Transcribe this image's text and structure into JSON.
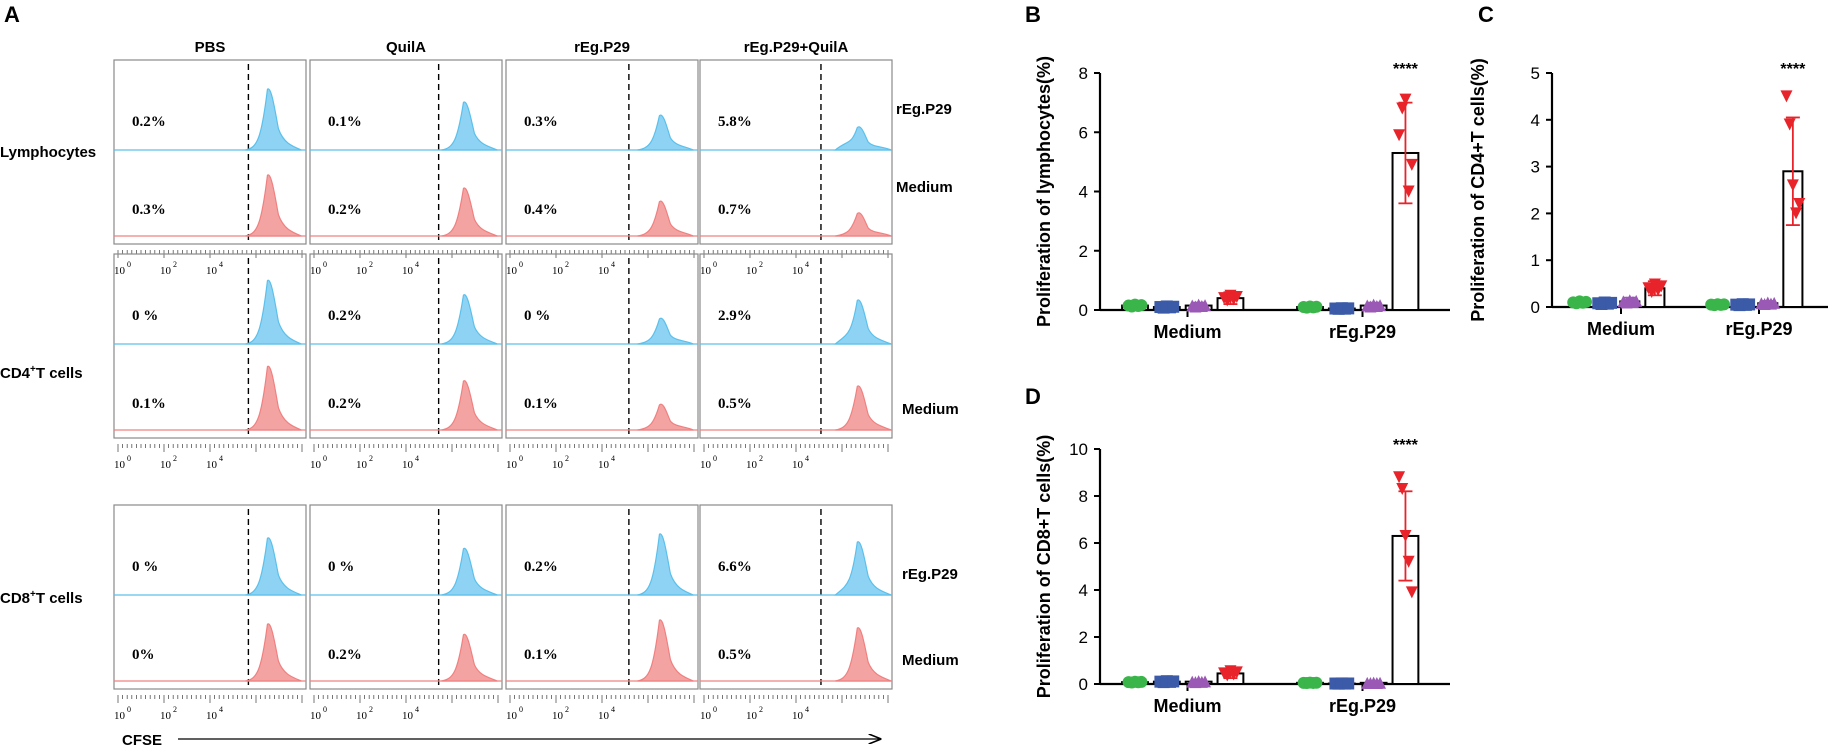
{
  "panel_letters": [
    "A",
    "B",
    "C",
    "D"
  ],
  "flow": {
    "columns": [
      "PBS",
      "QuilA",
      "rEg.P29",
      "rEg.P29+QuilA"
    ],
    "row_groups": [
      {
        "label": "Lymphocytes",
        "label_base": "Lymphocytes",
        "label_sup": "",
        "label_tail": "",
        "rEg": [
          "0.2%",
          "0.1%",
          "0.3%",
          "5.8%"
        ],
        "Medium": [
          "0.3%",
          "0.2%",
          "0.4%",
          "0.7%"
        ]
      },
      {
        "label": "CD4+T cells",
        "label_base": "CD4",
        "label_sup": "+",
        "label_tail": "T cells",
        "rEg": [
          "0 %",
          "0.2%",
          "0 %",
          "2.9%"
        ],
        "Medium": [
          "0.1%",
          "0.2%",
          "0.1%",
          "0.5%"
        ]
      },
      {
        "label": "CD8+T cells",
        "label_base": "CD8",
        "label_sup": "+",
        "label_tail": "T cells",
        "rEg": [
          "0 %",
          "0 %",
          "0.2%",
          "6.6%"
        ],
        "Medium": [
          "0%",
          "0.2%",
          "0.1%",
          "0.5%"
        ]
      }
    ],
    "condition_labels": [
      "rEg.P29",
      "Medium"
    ],
    "axis_ticks": [
      "10",
      "10",
      "10",
      "10"
    ],
    "axis_tick_exponents": [
      "0",
      "2",
      "4"
    ],
    "x_axis_label": "CFSE",
    "colors": {
      "rEg": "#5bc0eb",
      "Medium": "#f08080",
      "rEg_fill": "#8fd3f4",
      "Medium_fill": "#f4a3a3"
    }
  },
  "chart_data": [
    {
      "panel": "B",
      "type": "bar",
      "ylabel": "Proliferation of lymphocytes(%)",
      "categories": [
        "Medium",
        "rEg.P29"
      ],
      "ylim": [
        0,
        8
      ],
      "yticks": [
        0,
        2,
        4,
        6,
        8
      ],
      "series": [
        {
          "name": "PBS",
          "color": "#3ab54a",
          "marker": "circle",
          "values": [
            0.15,
            0.1
          ],
          "sd": [
            0.1,
            0.05
          ]
        },
        {
          "name": "QuilA",
          "color": "#3b5aa8",
          "marker": "square",
          "values": [
            0.1,
            0.05
          ],
          "sd": [
            0.05,
            0.05
          ]
        },
        {
          "name": "rEg.P29",
          "color": "#9b59b6",
          "marker": "triangle",
          "values": [
            0.15,
            0.15
          ],
          "sd": [
            0.1,
            0.1
          ]
        },
        {
          "name": "rEg.P29+QuilA",
          "color": "#e8232a",
          "marker": "triangle-down",
          "values": [
            0.4,
            5.3
          ],
          "sd": [
            0.2,
            1.7
          ]
        }
      ],
      "points_last": [
        5.9,
        6.8,
        7.1,
        4.0,
        4.9
      ],
      "significance": "****"
    },
    {
      "panel": "C",
      "type": "bar",
      "ylabel": "Proliferation of CD4+T cells(%)",
      "categories": [
        "Medium",
        "rEg.P29"
      ],
      "ylim": [
        0,
        5
      ],
      "yticks": [
        0,
        1,
        2,
        3,
        4,
        5
      ],
      "series": [
        {
          "name": "PBS",
          "color": "#3ab54a",
          "marker": "circle",
          "values": [
            0.1,
            0.05
          ],
          "sd": [
            0.05,
            0.05
          ]
        },
        {
          "name": "QuilA",
          "color": "#3b5aa8",
          "marker": "square",
          "values": [
            0.08,
            0.05
          ],
          "sd": [
            0.05,
            0.03
          ]
        },
        {
          "name": "rEg.P29",
          "color": "#9b59b6",
          "marker": "triangle",
          "values": [
            0.12,
            0.08
          ],
          "sd": [
            0.08,
            0.05
          ]
        },
        {
          "name": "rEg.P29+QuilA",
          "color": "#e8232a",
          "marker": "triangle-down",
          "values": [
            0.4,
            2.9
          ],
          "sd": [
            0.15,
            1.15
          ]
        }
      ],
      "points_last": [
        4.5,
        3.9,
        2.6,
        2.0,
        2.2
      ],
      "significance": "****"
    },
    {
      "panel": "D",
      "type": "bar",
      "ylabel": "Proliferation of CD8+T cells(%)",
      "categories": [
        "Medium",
        "rEg.P29"
      ],
      "ylim": [
        0,
        10
      ],
      "yticks": [
        0,
        2,
        4,
        6,
        8,
        10
      ],
      "series": [
        {
          "name": "PBS",
          "color": "#3ab54a",
          "marker": "circle",
          "values": [
            0.08,
            0.05
          ],
          "sd": [
            0.05,
            0.03
          ]
        },
        {
          "name": "QuilA",
          "color": "#3b5aa8",
          "marker": "square",
          "values": [
            0.1,
            0.02
          ],
          "sd": [
            0.05,
            0.02
          ]
        },
        {
          "name": "rEg.P29",
          "color": "#9b59b6",
          "marker": "triangle",
          "values": [
            0.1,
            0.05
          ],
          "sd": [
            0.05,
            0.05
          ]
        },
        {
          "name": "rEg.P29+QuilA",
          "color": "#e8232a",
          "marker": "triangle-down",
          "values": [
            0.45,
            6.3
          ],
          "sd": [
            0.2,
            1.9
          ]
        }
      ],
      "points_last": [
        8.8,
        8.3,
        6.3,
        5.2,
        3.9
      ],
      "significance": "****"
    }
  ]
}
